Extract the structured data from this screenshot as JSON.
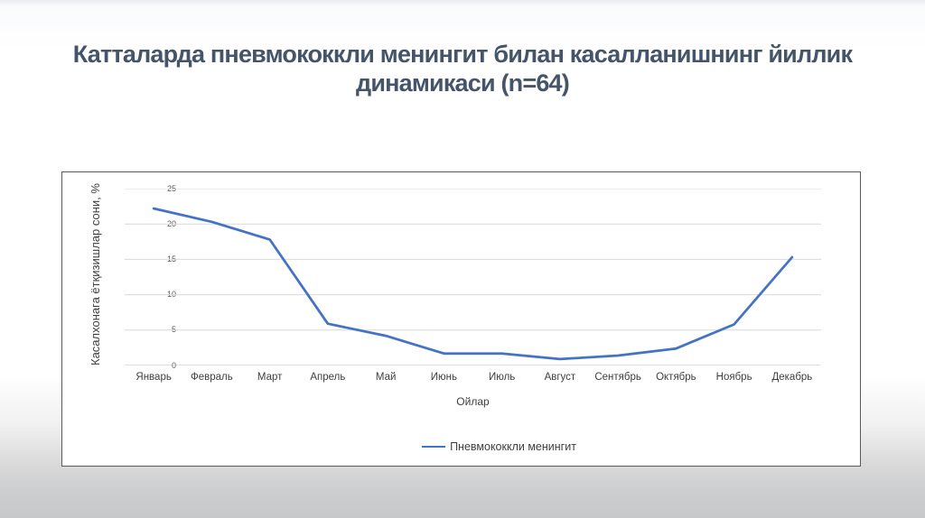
{
  "slide": {
    "title": {
      "line1": "Катталарда пневмококкли менингит билан касалланишнинг йиллик",
      "line2": "динамикаси (n=64)"
    }
  },
  "chart_data": {
    "type": "line",
    "categories": [
      "Январь",
      "Февраль",
      "Март",
      "Апрель",
      "Май",
      "Июнь",
      "Июль",
      "Август",
      "Сентябрь",
      "Октябрь",
      "Ноябрь",
      "Декабрь"
    ],
    "series": [
      {
        "name": "Пневмококкли менингит",
        "color": "#4472C4",
        "values": [
          22.2,
          20.3,
          17.8,
          5.9,
          4.2,
          1.7,
          1.7,
          0.9,
          1.4,
          2.4,
          5.8,
          15.3
        ]
      }
    ],
    "xlabel": "Ойлар",
    "ylabel": "Касалхонага ётқизишлар сони, %",
    "ylim": [
      0,
      25
    ],
    "yticks": [
      0,
      5,
      10,
      15,
      20,
      25
    ],
    "grid": true,
    "legend_position": "bottom"
  },
  "colors": {
    "title_text": "#44546A",
    "series_line": "#4472C4",
    "gridline": "#D9D9D9",
    "axis_line": "#BFBFBF",
    "tick_text": "#595959",
    "label_text": "#3F3F3F",
    "chart_border": "#595959"
  }
}
